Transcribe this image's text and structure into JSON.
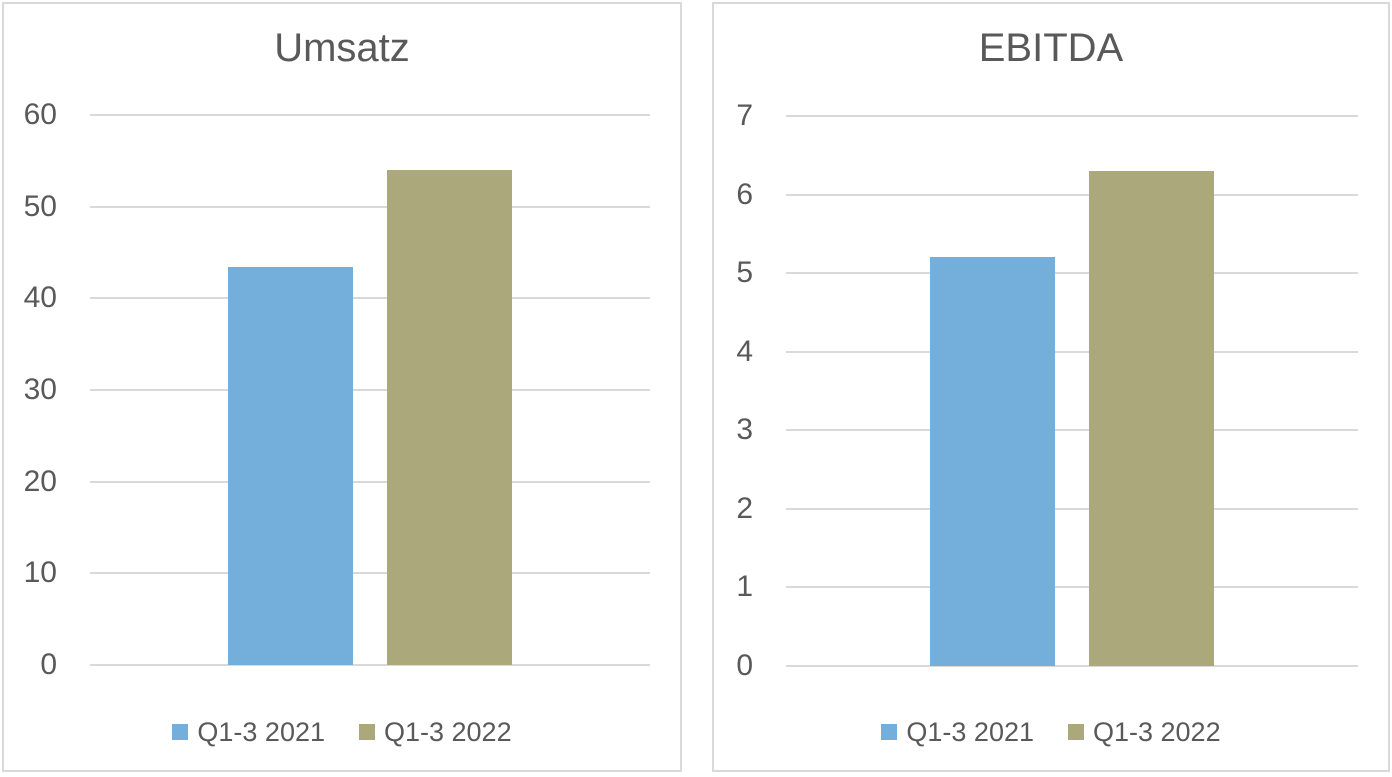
{
  "theme": {
    "text_color": "#595959",
    "gridline_color": "#D9D9D9",
    "panel_border_color": "#D9D9D9",
    "background": "#FFFFFF"
  },
  "chart_data": [
    {
      "type": "bar",
      "title": "Umsatz",
      "categories": [
        ""
      ],
      "series": [
        {
          "name": "Q1-3 2021",
          "color": "#74AEDB",
          "values": [
            43.4
          ]
        },
        {
          "name": "Q1-3 2022",
          "color": "#ABA87C",
          "values": [
            54.0
          ]
        }
      ],
      "xlabel": "",
      "ylabel": "",
      "ylim": [
        0,
        60
      ],
      "yticks": [
        0,
        10,
        20,
        30,
        40,
        50,
        60
      ],
      "grid": true,
      "legend_position": "bottom"
    },
    {
      "type": "bar",
      "title": "EBITDA",
      "categories": [
        ""
      ],
      "series": [
        {
          "name": "Q1-3 2021",
          "color": "#74AEDB",
          "values": [
            5.2
          ]
        },
        {
          "name": "Q1-3 2022",
          "color": "#ABA87C",
          "values": [
            6.3
          ]
        }
      ],
      "xlabel": "",
      "ylabel": "",
      "ylim": [
        0,
        7
      ],
      "yticks": [
        0,
        1,
        2,
        3,
        4,
        5,
        6,
        7
      ],
      "grid": true,
      "legend_position": "bottom"
    }
  ]
}
